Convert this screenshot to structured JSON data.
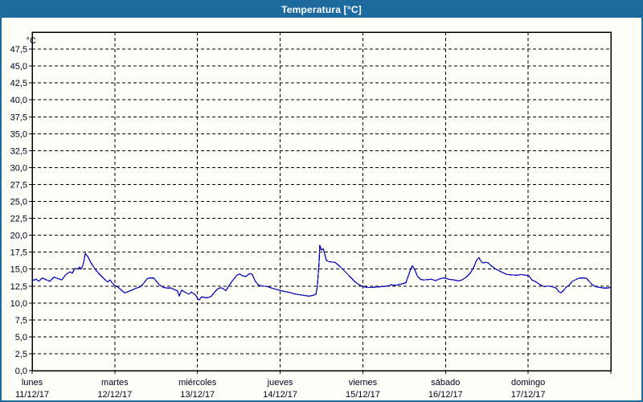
{
  "window": {
    "title": "Temperatura [°C]"
  },
  "colors": {
    "titlebar": "#1d6a9e",
    "window_border": "#1d6a9e",
    "background": "#fdfef8",
    "plot_border": "#000000",
    "grid": "#000000",
    "label": "#000020",
    "title_text": "#ffffff",
    "line": "#0d0dbb"
  },
  "chart_data": {
    "type": "line",
    "title": "Temperatura [°C]",
    "y_unit_label": "°C",
    "ylim": [
      0,
      50
    ],
    "y_tick_step": 2.5,
    "y_tick_labels": [
      "0,0",
      "2,5",
      "5,0",
      "7,5",
      "10,0",
      "12,5",
      "15,0",
      "17,5",
      "20,0",
      "22,5",
      "25,0",
      "27,5",
      "30,0",
      "32,5",
      "35,0",
      "37,5",
      "40,0",
      "42,5",
      "45,0",
      "47,5"
    ],
    "grid": "dashed",
    "legend": "none",
    "x_range_hours": [
      0,
      168
    ],
    "x_days": [
      {
        "name": "lunes",
        "date": "11/12/17"
      },
      {
        "name": "martes",
        "date": "12/12/17"
      },
      {
        "name": "miércoles",
        "date": "13/12/17"
      },
      {
        "name": "jueves",
        "date": "14/12/17"
      },
      {
        "name": "viernes",
        "date": "15/12/17"
      },
      {
        "name": "sábado",
        "date": "16/12/17"
      },
      {
        "name": "domingo",
        "date": "17/12/17"
      }
    ],
    "series": [
      {
        "name": "Temperatura",
        "color": "#0d0dbb",
        "points": [
          [
            0,
            13.3
          ],
          [
            1.2,
            13.5
          ],
          [
            1.9,
            13.2
          ],
          [
            3,
            13.7
          ],
          [
            4.2,
            13.4
          ],
          [
            5.1,
            13.2
          ],
          [
            6.3,
            13.8
          ],
          [
            7.5,
            13.6
          ],
          [
            8.6,
            13.4
          ],
          [
            9.8,
            14.2
          ],
          [
            11,
            14.6
          ],
          [
            11.7,
            14.4
          ],
          [
            12.4,
            15.1
          ],
          [
            13.1,
            15.0
          ],
          [
            13.8,
            15.3
          ],
          [
            14.2,
            15.0
          ],
          [
            14.6,
            15.4
          ],
          [
            15.1,
            16.3
          ],
          [
            15.4,
            17.3
          ],
          [
            16.1,
            16.9
          ],
          [
            17,
            16.0
          ],
          [
            18.4,
            14.9
          ],
          [
            19.6,
            14.2
          ],
          [
            20.8,
            13.6
          ],
          [
            21.9,
            13.1
          ],
          [
            22.6,
            13.4
          ],
          [
            23.3,
            12.9
          ],
          [
            24,
            12.6
          ],
          [
            25,
            12.3
          ],
          [
            26.1,
            11.8
          ],
          [
            26.8,
            11.5
          ],
          [
            27.5,
            11.6
          ],
          [
            28.5,
            11.8
          ],
          [
            29.4,
            12.0
          ],
          [
            30.3,
            12.2
          ],
          [
            31.5,
            12.4
          ],
          [
            32.7,
            13.1
          ],
          [
            33.4,
            13.6
          ],
          [
            34.1,
            13.7
          ],
          [
            35.2,
            13.7
          ],
          [
            35.9,
            13.3
          ],
          [
            36.9,
            12.7
          ],
          [
            38,
            12.3
          ],
          [
            39.2,
            12.2
          ],
          [
            40.4,
            12.2
          ],
          [
            41.5,
            11.9
          ],
          [
            42.2,
            11.8
          ],
          [
            42.7,
            11.0
          ],
          [
            43.4,
            11.9
          ],
          [
            44.3,
            11.6
          ],
          [
            45.5,
            11.3
          ],
          [
            46.2,
            11.6
          ],
          [
            47.4,
            11.2
          ],
          [
            48.1,
            10.6
          ],
          [
            48.5,
            10.45
          ],
          [
            49.2,
            10.9
          ],
          [
            50.2,
            10.8
          ],
          [
            51.1,
            10.8
          ],
          [
            52,
            11.0
          ],
          [
            53,
            11.6
          ],
          [
            53.9,
            12.1
          ],
          [
            54.8,
            12.25
          ],
          [
            55.5,
            12.1
          ],
          [
            56.2,
            11.8
          ],
          [
            57.2,
            12.6
          ],
          [
            58.3,
            13.4
          ],
          [
            59.5,
            14.1
          ],
          [
            60.2,
            14.3
          ],
          [
            61.1,
            14.0
          ],
          [
            62,
            13.9
          ],
          [
            63.2,
            14.35
          ],
          [
            63.9,
            14.2
          ],
          [
            64.8,
            13.2
          ],
          [
            65.8,
            12.6
          ],
          [
            66.9,
            12.5
          ],
          [
            68.1,
            12.45
          ],
          [
            69.5,
            12.2
          ],
          [
            70.9,
            12.0
          ],
          [
            72.3,
            11.8
          ],
          [
            73.3,
            11.7
          ],
          [
            74.7,
            11.55
          ],
          [
            76.5,
            11.3
          ],
          [
            77.9,
            11.2
          ],
          [
            79.1,
            11.1
          ],
          [
            80.3,
            11.0
          ],
          [
            81.4,
            11.1
          ],
          [
            82.4,
            11.3
          ],
          [
            82.8,
            12.5
          ],
          [
            83.3,
            16.0
          ],
          [
            83.5,
            18.5
          ],
          [
            84,
            17.8
          ],
          [
            84.5,
            18.0
          ],
          [
            84.9,
            17.3
          ],
          [
            85.4,
            16.3
          ],
          [
            86.1,
            16.1
          ],
          [
            87,
            16.05
          ],
          [
            87.9,
            16.0
          ],
          [
            89.1,
            15.5
          ],
          [
            90.3,
            14.9
          ],
          [
            91.5,
            14.3
          ],
          [
            92.6,
            13.7
          ],
          [
            93.8,
            13.1
          ],
          [
            94.9,
            12.7
          ],
          [
            96.1,
            12.4
          ],
          [
            97.3,
            12.3
          ],
          [
            98.7,
            12.3
          ],
          [
            99.9,
            12.35
          ],
          [
            101.2,
            12.4
          ],
          [
            102.4,
            12.45
          ],
          [
            103.6,
            12.55
          ],
          [
            104.3,
            12.7
          ],
          [
            105.2,
            12.6
          ],
          [
            106.4,
            12.7
          ],
          [
            107.6,
            12.85
          ],
          [
            108.5,
            13.0
          ],
          [
            109.2,
            14.0
          ],
          [
            109.9,
            15.0
          ],
          [
            110.4,
            15.5
          ],
          [
            111.1,
            14.9
          ],
          [
            111.8,
            14.0
          ],
          [
            112.7,
            13.5
          ],
          [
            113.6,
            13.4
          ],
          [
            114.8,
            13.45
          ],
          [
            115.9,
            13.5
          ],
          [
            117.1,
            13.3
          ],
          [
            118.5,
            13.6
          ],
          [
            119.7,
            13.7
          ],
          [
            120.9,
            13.5
          ],
          [
            122.5,
            13.4
          ],
          [
            123.7,
            13.25
          ],
          [
            124.8,
            13.4
          ],
          [
            126,
            13.8
          ],
          [
            127.2,
            14.4
          ],
          [
            128.3,
            15.4
          ],
          [
            129,
            16.3
          ],
          [
            129.7,
            16.7
          ],
          [
            130.2,
            16.2
          ],
          [
            130.9,
            15.9
          ],
          [
            131.6,
            16.0
          ],
          [
            132.3,
            15.95
          ],
          [
            133.5,
            15.4
          ],
          [
            134.6,
            15.0
          ],
          [
            135.8,
            14.7
          ],
          [
            137,
            14.4
          ],
          [
            137.9,
            14.2
          ],
          [
            139.3,
            14.15
          ],
          [
            140.7,
            14.1
          ],
          [
            142.1,
            14.2
          ],
          [
            143.2,
            14.1
          ],
          [
            144.2,
            14.0
          ],
          [
            145.1,
            13.4
          ],
          [
            146.3,
            13.1
          ],
          [
            147.5,
            12.7
          ],
          [
            148.6,
            12.4
          ],
          [
            149.8,
            12.5
          ],
          [
            151,
            12.4
          ],
          [
            152.1,
            12.2
          ],
          [
            152.8,
            11.75
          ],
          [
            153.5,
            11.5
          ],
          [
            154.5,
            12.0
          ],
          [
            155.2,
            12.4
          ],
          [
            155.9,
            12.6
          ],
          [
            156.8,
            13.2
          ],
          [
            158,
            13.5
          ],
          [
            159.1,
            13.7
          ],
          [
            160.3,
            13.7
          ],
          [
            161,
            13.6
          ],
          [
            161.7,
            13.2
          ],
          [
            162.6,
            12.7
          ],
          [
            163.6,
            12.4
          ],
          [
            164.7,
            12.3
          ],
          [
            165.9,
            12.2
          ],
          [
            167,
            12.2
          ],
          [
            168,
            12.3
          ]
        ]
      }
    ]
  }
}
